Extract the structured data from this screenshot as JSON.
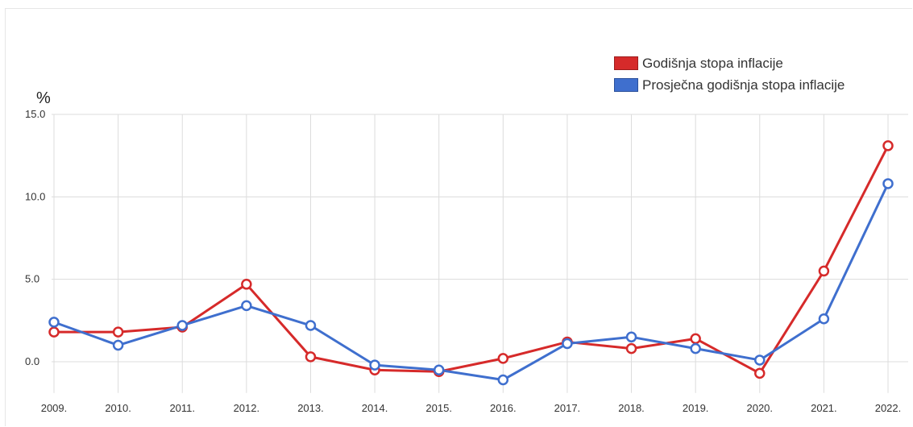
{
  "chart_data": {
    "type": "line",
    "ylabel": "%",
    "ylim": [
      -1.6,
      15.0
    ],
    "yticks": [
      "15.0",
      "10.0",
      "5.0",
      "0.0"
    ],
    "ytick_values": [
      15,
      10,
      5,
      0
    ],
    "categories": [
      "2009.",
      "2010.",
      "2011.",
      "2012.",
      "2013.",
      "2014.",
      "2015.",
      "2016.",
      "2017.",
      "2018.",
      "2019.",
      "2020.",
      "2021.",
      "2022."
    ],
    "legend_position": "top-right",
    "grid": true,
    "series": [
      {
        "name": "Godišnja stopa inflacije",
        "color": "#d62a2a",
        "values": [
          1.8,
          1.8,
          2.1,
          4.7,
          0.3,
          -0.5,
          -0.6,
          0.2,
          1.2,
          0.8,
          1.4,
          -0.7,
          5.5,
          13.1
        ]
      },
      {
        "name": "Prosječna godišnja stopa inflacije",
        "color": "#3f6fce",
        "values": [
          2.4,
          1.0,
          2.2,
          3.4,
          2.2,
          -0.2,
          -0.5,
          -1.1,
          1.1,
          1.5,
          0.8,
          0.1,
          2.6,
          10.8
        ]
      }
    ]
  }
}
